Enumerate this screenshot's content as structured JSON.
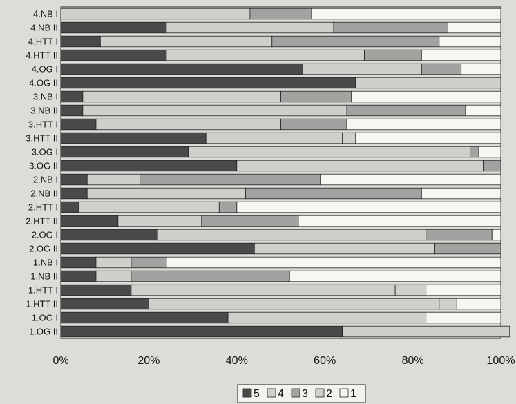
{
  "chart_data": {
    "type": "bar",
    "orientation": "horizontal",
    "stacked": "percent",
    "categories": [
      "4.NB I",
      "4.NB II",
      "4.HTT I",
      "4.HTT II",
      "4.OG I",
      "4.OG II",
      "3.NB I",
      "3.NB II",
      "3.HTT I",
      "3.HTT II",
      "3.OG I",
      "3.OG II",
      "2.NB I",
      "2.NB II",
      "2.HTT I",
      "2.HTT II",
      "2.OG I",
      "2.OG II",
      "1.NB I",
      "1.NB II",
      "1.HTT I",
      "1.HTT II",
      "1.OG I",
      "1.OG II"
    ],
    "series": [
      {
        "name": "5",
        "color": "#4a4a4a",
        "values": [
          0,
          24,
          9,
          24,
          55,
          67,
          5,
          5,
          8,
          33,
          29,
          40,
          6,
          6,
          4,
          13,
          22,
          44,
          8,
          8,
          16,
          20,
          38,
          64
        ]
      },
      {
        "name": "4",
        "color": "#cfcfcb",
        "values": [
          43,
          38,
          39,
          45,
          27,
          33,
          45,
          60,
          42,
          31,
          64,
          56,
          12,
          36,
          32,
          19,
          61,
          41,
          8,
          8,
          60,
          66,
          45,
          38
        ]
      },
      {
        "name": "3",
        "color": "#a2a2a0",
        "values": [
          14,
          26,
          38,
          13,
          9,
          0,
          16,
          27,
          15,
          0,
          2,
          4,
          41,
          40,
          4,
          22,
          15,
          15,
          8,
          36,
          0,
          0,
          0,
          0
        ]
      },
      {
        "name": "2",
        "color": "#cfcfcb",
        "values": [
          0,
          0,
          0,
          0,
          0,
          0,
          0,
          0,
          0,
          3,
          0,
          0,
          0,
          0,
          0,
          0,
          0,
          0,
          0,
          0,
          7,
          4,
          0,
          0
        ]
      },
      {
        "name": "1",
        "color": "#f6f6f2",
        "values": [
          43,
          12,
          14,
          18,
          9,
          0,
          34,
          8,
          35,
          33,
          5,
          0,
          41,
          18,
          60,
          46,
          2,
          0,
          76,
          48,
          17,
          10,
          17,
          0
        ]
      }
    ],
    "xaxis": {
      "ticks": [
        "0%",
        "20%",
        "40%",
        "60%",
        "80%",
        "100%"
      ],
      "range": [
        0,
        100
      ]
    },
    "grid": false,
    "legend": {
      "position": "bottom",
      "entries": [
        "5",
        "4",
        "3",
        "2",
        "1"
      ]
    }
  }
}
